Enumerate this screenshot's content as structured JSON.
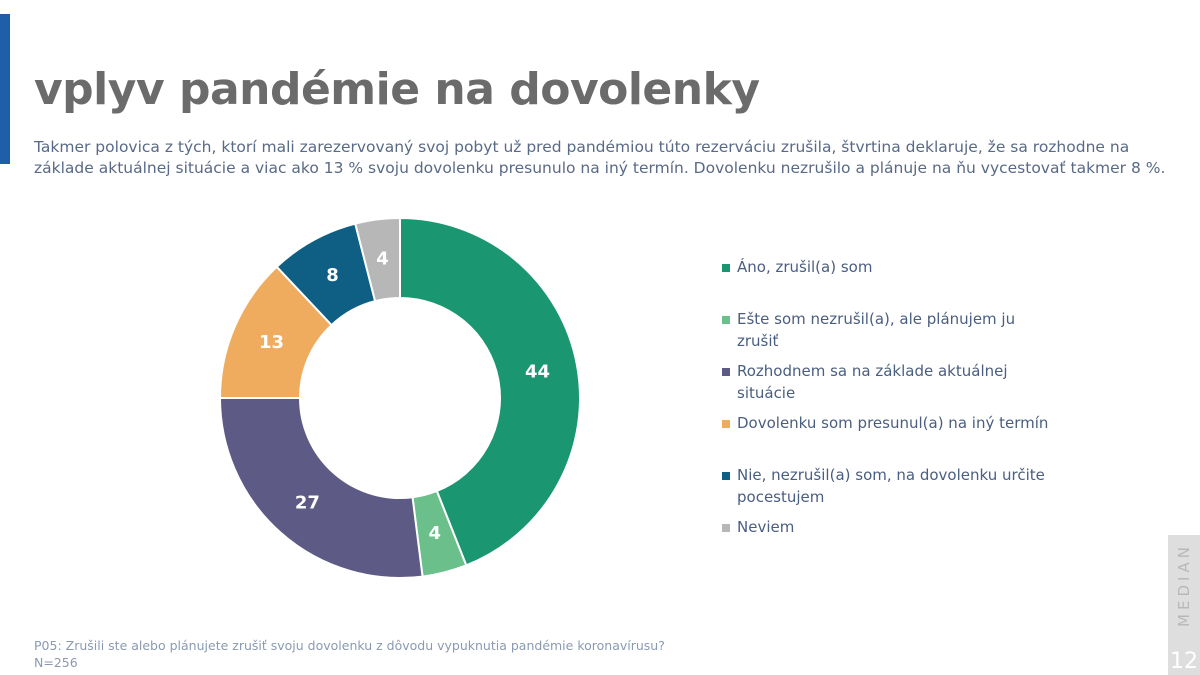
{
  "header": {
    "title": "vplyv pandémie na dovolenky",
    "subtitle": "Takmer polovica z tých, ktorí mali zarezervovaný svoj pobyt už pred pandémiou túto rezerváciu zrušila, štvrtina deklaruje, že sa rozhodne na základe aktuálnej situácie a viac ako 13 % svoju dovolenku presunulo na iný termín. Dovolenku nezrušilo a plánuje na ňu vycestovať takmer 8 %."
  },
  "colors": {
    "accent_bar": "#1f5fa8",
    "title": "#6b6b6b",
    "text": "#596a86"
  },
  "chart_data": {
    "type": "pie",
    "donut": true,
    "title": "",
    "legend_position": "right",
    "series": [
      {
        "name": "Áno, zrušil(a) som",
        "value": 44,
        "label": "44",
        "color": "#1a9671"
      },
      {
        "name": "Ešte som nezrušil(a), ale plánujem ju zrušiť",
        "value": 4,
        "label": "4",
        "color": "#6abf8b"
      },
      {
        "name": "Rozhodnem sa na základe aktuálnej situácie",
        "value": 27,
        "label": "27",
        "color": "#5d5a85"
      },
      {
        "name": "Dovolenku som presunul(a) na iný termín",
        "value": 13,
        "label": "13",
        "color": "#f0ac5e"
      },
      {
        "name": "Nie, nezrušil(a) som, na dovolenku určite pocestujem",
        "value": 8,
        "label": "8",
        "color": "#0f5f85"
      },
      {
        "name": "Neviem",
        "value": 4,
        "label": "4",
        "color": "#b7b7b7"
      }
    ]
  },
  "legend": {
    "items": [
      {
        "label": "Áno, zrušil(a) som",
        "color": "#1a9671"
      },
      {
        "label": "Ešte som nezrušil(a), ale plánujem ju zrušiť",
        "color": "#6abf8b"
      },
      {
        "label": "Rozhodnem sa na základe aktuálnej situácie",
        "color": "#5d5a85"
      },
      {
        "label": "Dovolenku som presunul(a) na iný termín",
        "color": "#f0ac5e"
      },
      {
        "label": "Nie, nezrušil(a) som, na dovolenku určite pocestujem",
        "color": "#0f5f85"
      },
      {
        "label": "Neviem",
        "color": "#b7b7b7"
      }
    ]
  },
  "footnote": {
    "question": "P05: Zrušili ste alebo plánujete zrušiť svoju dovolenku z dôvodu vypuknutia pandémie koronavírusu?",
    "sample": "N=256"
  },
  "branding": {
    "logo_text": "MEDIAN",
    "page_number": "12"
  }
}
